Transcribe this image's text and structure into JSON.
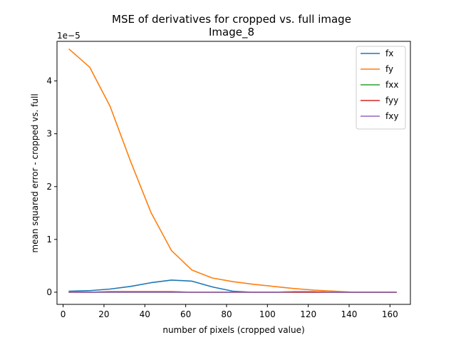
{
  "chart_data": {
    "type": "line",
    "title": "MSE of derivatives for cropped vs. full image",
    "subtitle": "Image_8",
    "xlabel": "number of pixels (cropped value)",
    "ylabel": "mean squared error - cropped vs. full",
    "y_multiplier_label": "1e−5",
    "xlim": [
      -3,
      170
    ],
    "ylim": [
      -0.23,
      4.75
    ],
    "x_ticks": [
      0,
      20,
      40,
      60,
      80,
      100,
      120,
      140,
      160
    ],
    "y_ticks": [
      0,
      1,
      2,
      3,
      4
    ],
    "grid": false,
    "legend_position": "top-right",
    "x": [
      3,
      13,
      23,
      33,
      43,
      53,
      63,
      73,
      83,
      93,
      103,
      113,
      123,
      133,
      143,
      153,
      163
    ],
    "series": [
      {
        "name": "fx",
        "color": "#1f77b4",
        "values": [
          0.02,
          0.03,
          0.06,
          0.11,
          0.18,
          0.23,
          0.21,
          0.1,
          0.02,
          0.0,
          0.0,
          0.01,
          0.01,
          0.0,
          0.0,
          0.0,
          0.0
        ]
      },
      {
        "name": "fy",
        "color": "#ff7f0e",
        "values": [
          4.6,
          4.26,
          3.52,
          2.48,
          1.51,
          0.79,
          0.42,
          0.27,
          0.2,
          0.15,
          0.11,
          0.07,
          0.04,
          0.02,
          0.0,
          0.0,
          0.0
        ]
      },
      {
        "name": "fxx",
        "color": "#2ca02c",
        "values": [
          0.0,
          0.0,
          0.0,
          0.0,
          0.0,
          0.0,
          0.0,
          0.0,
          0.0,
          0.0,
          0.0,
          0.0,
          0.0,
          0.0,
          0.0,
          0.0,
          0.0
        ]
      },
      {
        "name": "fyy",
        "color": "#d62728",
        "values": [
          0.0,
          0.0,
          0.01,
          0.01,
          0.01,
          0.01,
          0.0,
          0.0,
          0.0,
          0.0,
          0.0,
          0.0,
          0.0,
          0.0,
          0.0,
          0.0,
          0.0
        ]
      },
      {
        "name": "fxy",
        "color": "#9467bd",
        "values": [
          0.0,
          0.0,
          0.0,
          0.0,
          0.0,
          0.0,
          0.0,
          0.0,
          0.0,
          0.0,
          0.0,
          0.01,
          0.01,
          0.0,
          0.0,
          0.0,
          0.0
        ]
      }
    ]
  }
}
